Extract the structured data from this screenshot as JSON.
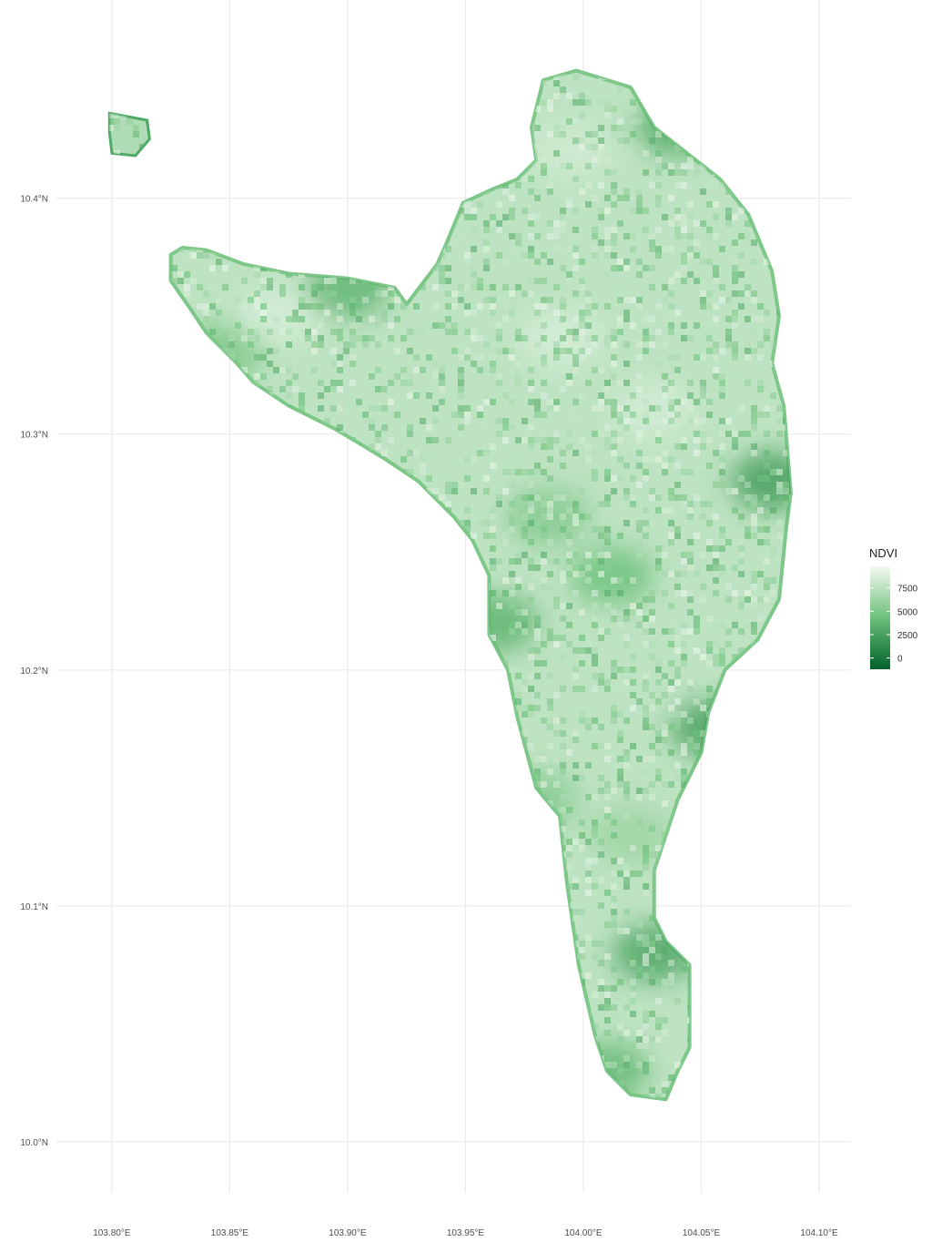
{
  "chart_data": {
    "type": "heatmap",
    "title": "",
    "xlabel": "",
    "ylabel": "",
    "x_ticks": [
      "103.80°E",
      "103.85°E",
      "103.90°E",
      "103.95°E",
      "104.00°E",
      "104.05°E",
      "104.10°E"
    ],
    "y_ticks": [
      "10.4°N",
      "10.3°N",
      "10.2°N",
      "10.1°N",
      "10.0°N"
    ],
    "x_tick_values": [
      103.8,
      103.85,
      103.9,
      103.95,
      104.0,
      104.05,
      104.1
    ],
    "y_tick_values": [
      10.4,
      10.3,
      10.2,
      10.1,
      10.0
    ],
    "xlim": [
      103.7765,
      104.1135
    ],
    "ylim": [
      9.9784,
      10.4608
    ],
    "grid": true,
    "legend": {
      "title": "NDVI",
      "placement": "right",
      "labels": [
        "7500",
        "5000",
        "2500",
        "0"
      ],
      "values": [
        7500,
        5000,
        2500,
        0
      ],
      "range": [
        -1200,
        9800
      ],
      "color_low": "#00622A",
      "color_mid": "#6CC07A",
      "color_high": "#F4FAF2"
    },
    "region_outline_lonlat": [
      [
        103.825,
        10.376
      ],
      [
        103.83,
        10.379
      ],
      [
        103.84,
        10.378
      ],
      [
        103.856,
        10.372
      ],
      [
        103.875,
        10.368
      ],
      [
        103.9,
        10.366
      ],
      [
        103.92,
        10.362
      ],
      [
        103.925,
        10.355
      ],
      [
        103.938,
        10.372
      ],
      [
        103.942,
        10.381
      ],
      [
        103.949,
        10.398
      ],
      [
        103.962,
        10.404
      ],
      [
        103.972,
        10.408
      ],
      [
        103.98,
        10.416
      ],
      [
        103.978,
        10.43
      ],
      [
        103.983,
        10.45
      ],
      [
        103.997,
        10.454
      ],
      [
        104.02,
        10.447
      ],
      [
        104.03,
        10.43
      ],
      [
        104.058,
        10.408
      ],
      [
        104.07,
        10.393
      ],
      [
        104.08,
        10.369
      ],
      [
        104.083,
        10.35
      ],
      [
        104.08,
        10.33
      ],
      [
        104.085,
        10.312
      ],
      [
        104.088,
        10.275
      ],
      [
        104.086,
        10.26
      ],
      [
        104.083,
        10.23
      ],
      [
        104.074,
        10.213
      ],
      [
        104.06,
        10.2
      ],
      [
        104.053,
        10.182
      ],
      [
        104.05,
        10.165
      ],
      [
        104.04,
        10.145
      ],
      [
        104.03,
        10.115
      ],
      [
        104.03,
        10.095
      ],
      [
        104.035,
        10.085
      ],
      [
        104.045,
        10.075
      ],
      [
        104.045,
        10.04
      ],
      [
        104.04,
        10.03
      ],
      [
        104.035,
        10.018
      ],
      [
        104.02,
        10.02
      ],
      [
        104.01,
        10.03
      ],
      [
        104.005,
        10.045
      ],
      [
        103.998,
        10.075
      ],
      [
        103.993,
        10.11
      ],
      [
        103.99,
        10.138
      ],
      [
        103.98,
        10.15
      ],
      [
        103.972,
        10.18
      ],
      [
        103.968,
        10.2
      ],
      [
        103.96,
        10.215
      ],
      [
        103.96,
        10.24
      ],
      [
        103.953,
        10.255
      ],
      [
        103.945,
        10.265
      ],
      [
        103.93,
        10.28
      ],
      [
        103.915,
        10.29
      ],
      [
        103.895,
        10.302
      ],
      [
        103.875,
        10.312
      ],
      [
        103.86,
        10.322
      ],
      [
        103.853,
        10.33
      ],
      [
        103.84,
        10.343
      ],
      [
        103.832,
        10.355
      ],
      [
        103.825,
        10.365
      ]
    ],
    "islet_outline_lonlat": [
      [
        103.799,
        10.436
      ],
      [
        103.815,
        10.433
      ],
      [
        103.816,
        10.425
      ],
      [
        103.81,
        10.418
      ],
      [
        103.8,
        10.419
      ],
      [
        103.799,
        10.428
      ]
    ],
    "vegetation_patches": [
      {
        "lon": 104.012,
        "lat": 10.24,
        "value": 4300
      },
      {
        "lon": 103.985,
        "lat": 10.265,
        "value": 5200
      },
      {
        "lon": 103.963,
        "lat": 10.22,
        "value": 3400
      },
      {
        "lon": 104.03,
        "lat": 10.08,
        "value": 2600
      },
      {
        "lon": 104.01,
        "lat": 10.03,
        "value": 3800
      },
      {
        "lon": 103.847,
        "lat": 10.335,
        "value": 4800
      },
      {
        "lon": 104.055,
        "lat": 10.175,
        "value": 2200
      },
      {
        "lon": 104.04,
        "lat": 10.43,
        "value": 3000
      },
      {
        "lon": 104.08,
        "lat": 10.28,
        "value": 2000
      },
      {
        "lon": 103.9,
        "lat": 10.362,
        "value": 3500
      },
      {
        "lon": 104.02,
        "lat": 10.13,
        "value": 6200
      },
      {
        "lon": 103.98,
        "lat": 10.145,
        "value": 5200
      },
      {
        "lon": 103.99,
        "lat": 10.34,
        "value": 8600
      },
      {
        "lon": 104.03,
        "lat": 10.31,
        "value": 8500
      },
      {
        "lon": 103.87,
        "lat": 10.35,
        "value": 8600
      },
      {
        "lon": 103.995,
        "lat": 10.42,
        "value": 8400
      }
    ]
  }
}
